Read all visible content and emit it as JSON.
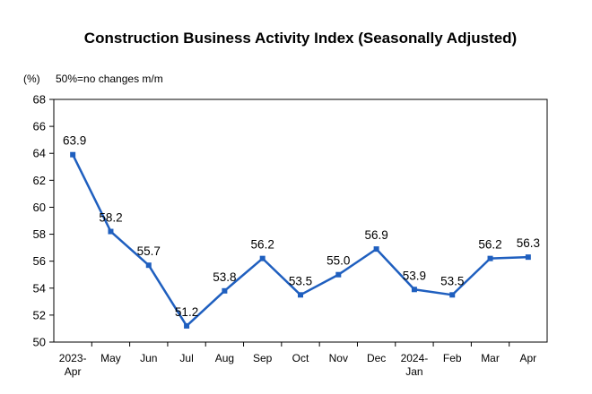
{
  "chart_data": {
    "type": "line",
    "title": "Construction Business Activity Index (Seasonally Adjusted)",
    "unit_label": "(%)",
    "annotation": "50%=no changes m/m",
    "categories": [
      [
        "2023-",
        "Apr"
      ],
      [
        "May"
      ],
      [
        "Jun"
      ],
      [
        "Jul"
      ],
      [
        "Aug"
      ],
      [
        "Sep"
      ],
      [
        "Oct"
      ],
      [
        "Nov"
      ],
      [
        "Dec"
      ],
      [
        "2024-",
        "Jan"
      ],
      [
        "Feb"
      ],
      [
        "Mar"
      ],
      [
        "Apr"
      ]
    ],
    "series": [
      {
        "values": [
          63.9,
          58.2,
          55.7,
          51.2,
          53.8,
          56.2,
          53.5,
          55.0,
          56.9,
          53.9,
          53.5,
          56.2,
          56.3
        ]
      }
    ],
    "value_labels": [
      "63.9",
      "58.2",
      "55.7",
      "51.2",
      "53.8",
      "56.2",
      "53.5",
      "55.0",
      "56.9",
      "53.9",
      "53.5",
      "56.2",
      "56.3"
    ],
    "ylim": [
      50,
      68
    ],
    "yticks": [
      50,
      52,
      54,
      56,
      58,
      60,
      62,
      64,
      66,
      68
    ],
    "grid": false,
    "line_color": "#1f5fbf"
  }
}
